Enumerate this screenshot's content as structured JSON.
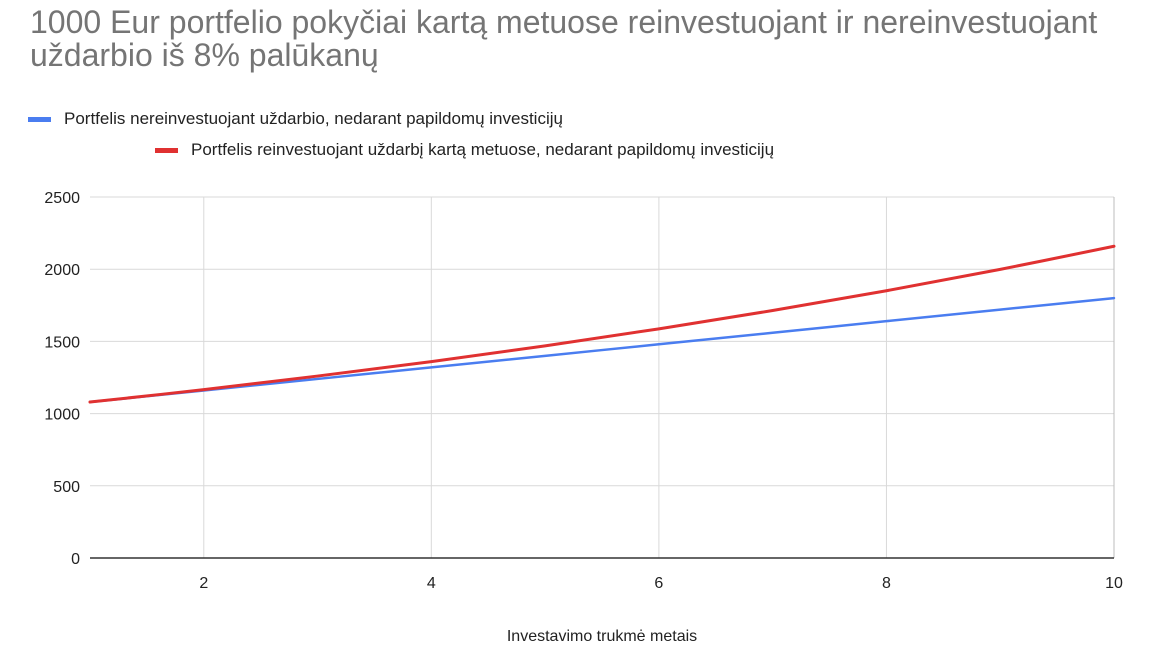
{
  "chart_data": {
    "type": "line",
    "title": "1000 Eur portfelio pokyčiai kartą metuose reinvestuojant ir nereinvestuojant uždarbio iš 8% palūkanų",
    "xlabel": "Investavimo trukmė metais",
    "ylabel": "",
    "xlim": [
      1,
      10
    ],
    "ylim": [
      0,
      2500
    ],
    "x_ticks": [
      2,
      4,
      6,
      8,
      10
    ],
    "y_ticks": [
      0,
      500,
      1000,
      1500,
      2000,
      2500
    ],
    "grid": true,
    "legend_position": "top",
    "x": [
      1,
      2,
      3,
      4,
      5,
      6,
      7,
      8,
      9,
      10
    ],
    "series": [
      {
        "name": "Portfelis nereinvestuojant uždarbio, nedarant papildomų investicijų",
        "color": "#4a7df0",
        "values": [
          1080,
          1160,
          1240,
          1320,
          1400,
          1480,
          1560,
          1640,
          1720,
          1800
        ]
      },
      {
        "name": "Portfelis reinvestuojant uždarbį kartą metuose, nedarant papildomų investicijų",
        "color": "#e03131",
        "values": [
          1080,
          1166,
          1260,
          1360,
          1469,
          1587,
          1714,
          1851,
          1999,
          2159
        ]
      }
    ]
  }
}
